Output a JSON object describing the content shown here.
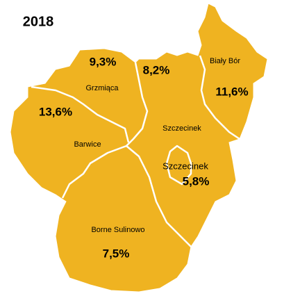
{
  "title": "2018",
  "regions": [
    {
      "name": "Grzmiąca",
      "value": "9,3%"
    },
    {
      "name": "Szczecinek",
      "value": "8,2%"
    },
    {
      "name": "Biały Bór",
      "value": "11,6%"
    },
    {
      "name": "Barwice",
      "value": "13,6%"
    },
    {
      "name": "Szczecinek",
      "value": "5,8%"
    },
    {
      "name": "Borne Sulinowo",
      "value": "7,5%"
    }
  ]
}
